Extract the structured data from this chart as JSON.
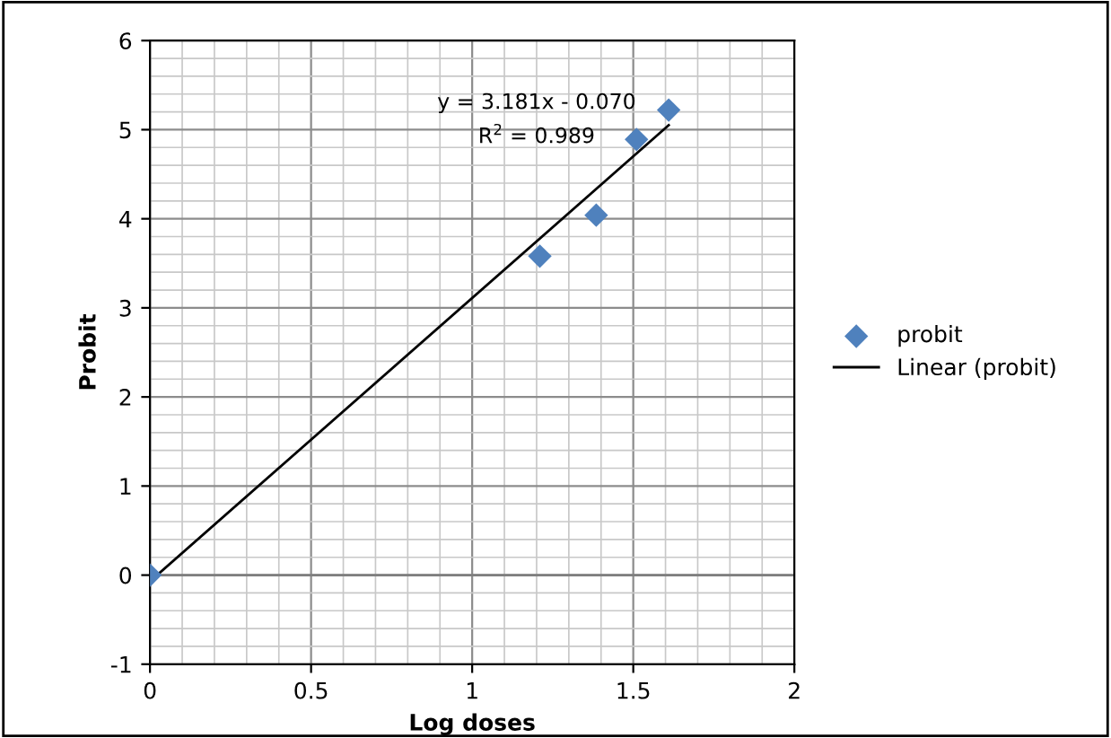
{
  "chart_data": {
    "type": "scatter",
    "xlabel": "Log doses",
    "ylabel": "Probit",
    "series": [
      {
        "name": "probit",
        "color": "#4f81bd",
        "marker": "diamond",
        "x": [
          0,
          1.21,
          1.385,
          1.51,
          1.61
        ],
        "values": [
          0,
          3.58,
          4.04,
          4.89,
          5.22
        ]
      },
      {
        "name": "Linear (probit)",
        "type": "line",
        "color": "#000000",
        "marker": "none",
        "x": [
          0,
          1.61
        ],
        "values": [
          -0.07,
          5.05
        ]
      }
    ],
    "annotations": [
      "y = 3.181x - 0.070",
      "R$^{2}$ = 0.989"
    ],
    "xlim": [
      0,
      2
    ],
    "xticks": [
      0,
      0.5,
      1,
      1.5,
      2
    ],
    "ylim": [
      -1,
      6
    ],
    "yticks": [
      -1,
      0,
      1,
      2,
      3,
      4,
      5,
      6
    ],
    "grid": true,
    "legend": "right"
  }
}
